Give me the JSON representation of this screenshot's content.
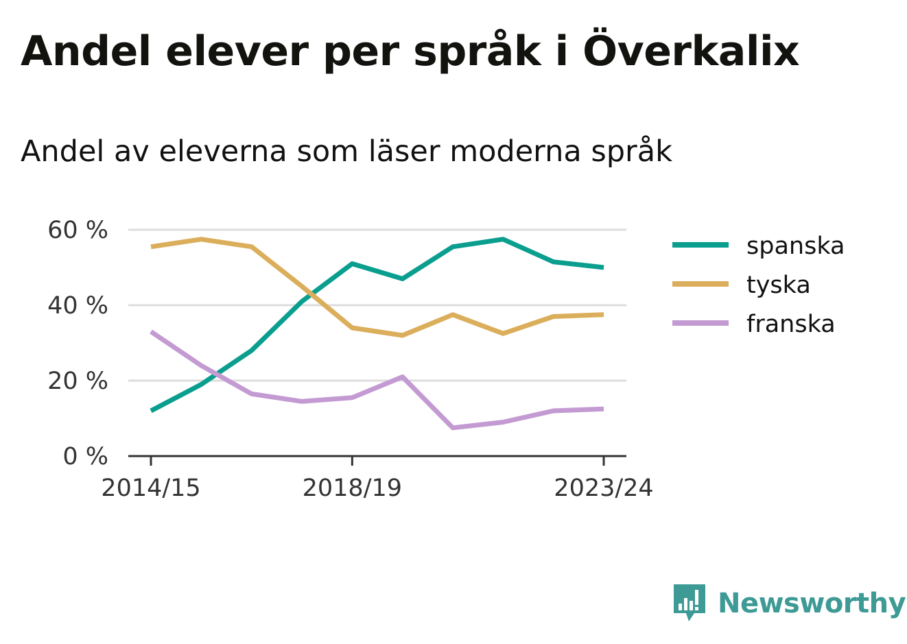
{
  "title": "Andel elever per språk i Överkalix",
  "subtitle": "Andel av eleverna som läser moderna språk",
  "brand": "Newsworthy",
  "brand_icon": "bar-chart-speech-bubble-icon",
  "colors": {
    "spanska": "#0a9e8f",
    "tyska": "#dbae5c",
    "franska": "#c39bd2",
    "grid": "#dddddd",
    "axis": "#333333",
    "brand": "#3d9a95"
  },
  "chart_data": {
    "type": "line",
    "x": [
      "2014/15",
      "2015/16",
      "2016/17",
      "2017/18",
      "2018/19",
      "2019/20",
      "2020/21",
      "2021/22",
      "2022/23",
      "2023/24"
    ],
    "x_tick_labels": [
      "2014/15",
      "2018/19",
      "2023/24"
    ],
    "y_ticks": [
      0,
      20,
      40,
      60
    ],
    "y_tick_labels": [
      "0 %",
      "20 %",
      "40 %",
      "60 %"
    ],
    "ylim": [
      0,
      60
    ],
    "y_unit": "%",
    "grid": true,
    "legend_position": "right",
    "series": [
      {
        "name": "spanska",
        "values": [
          12,
          19,
          28,
          41,
          51,
          47,
          55.5,
          57.5,
          51.5,
          50
        ]
      },
      {
        "name": "tyska",
        "values": [
          55.5,
          57.5,
          55.5,
          45,
          34,
          32,
          37.5,
          32.5,
          37,
          37.5
        ]
      },
      {
        "name": "franska",
        "values": [
          33,
          24,
          16.5,
          14.5,
          15.5,
          21,
          7.5,
          9,
          12,
          12.5
        ]
      }
    ]
  }
}
